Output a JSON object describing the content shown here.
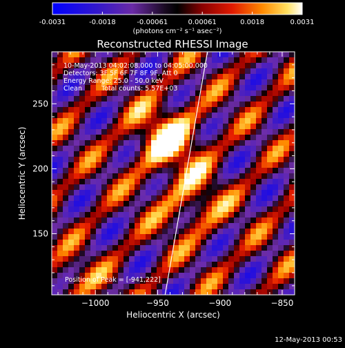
{
  "chart_data": {
    "type": "heatmap",
    "title": "Reconstructed RHESSI Image",
    "xlabel": "Heliocentric X (arcsec)",
    "ylabel": "Heliocentric Y (arcsec)",
    "xlim": [
      -1035,
      -840
    ],
    "ylim": [
      103,
      290
    ],
    "x_ticks": [
      -1000,
      -950,
      -900,
      -850
    ],
    "x_tick_labels": [
      "−1000",
      "−950",
      "−900",
      "−850"
    ],
    "y_ticks": [
      150,
      200,
      250
    ],
    "y_tick_labels": [
      "150",
      "200",
      "250"
    ],
    "colorbar": {
      "range": [
        -0.0031,
        0.0031
      ],
      "tick_labels": [
        "-0.0031",
        "-0.0018",
        "-0.00061",
        "0.00061",
        "0.0018",
        "0.0031"
      ],
      "units_label": "(photons cm⁻² s⁻¹ asec⁻²)",
      "colormap": "rainbow-like: blue, purple, black, red, orange, yellow, white"
    },
    "annotations": {
      "time_range": "10-May-2013 04:02:08.000 to 04:05:00.000",
      "detectors": "Detectors: 3F 5F 6F 7F 8F 9F, Att 0",
      "energy": "Energy Range: 25.0 - 50.0 keV",
      "clean": "Clean",
      "counts": "Total counts: 5.57E+03",
      "peak": "Position of Peak = [-941,222]"
    },
    "peak": {
      "x": -941,
      "y": 222
    },
    "limb_line": {
      "from": [
        -944,
        103
      ],
      "to": [
        -910,
        290
      ]
    },
    "grid": false
  },
  "footer": {
    "timestamp": "12-May-2013 00:53"
  }
}
